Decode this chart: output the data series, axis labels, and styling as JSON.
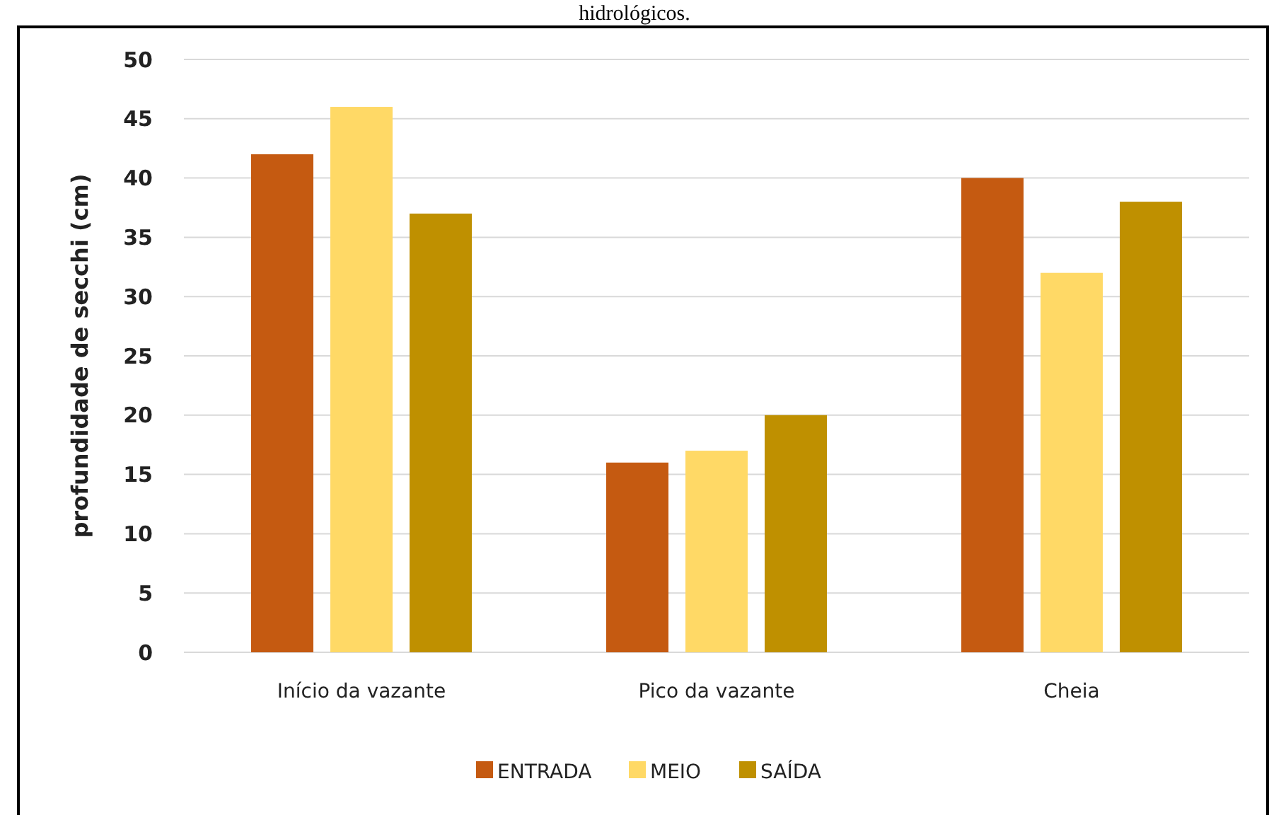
{
  "chart_data": {
    "type": "bar",
    "annotations": [
      "hidrológicos."
    ],
    "ylabel": "profundidade de secchi (cm)",
    "categories": [
      "Início da vazante",
      "Pico da vazante",
      "Cheia"
    ],
    "series": [
      {
        "name": "ENTRADA",
        "color": "#c55a11",
        "values": [
          42,
          16,
          40
        ]
      },
      {
        "name": "MEIO",
        "color": "#ffd966",
        "values": [
          46,
          17,
          32
        ]
      },
      {
        "name": "SAÍDA",
        "color": "#bf9000",
        "values": [
          37,
          20,
          38
        ]
      }
    ],
    "ylim": [
      0,
      50
    ],
    "yticks": [
      0,
      5,
      10,
      15,
      20,
      25,
      30,
      35,
      40,
      45,
      50
    ],
    "grid": true,
    "legend": "bottom"
  }
}
